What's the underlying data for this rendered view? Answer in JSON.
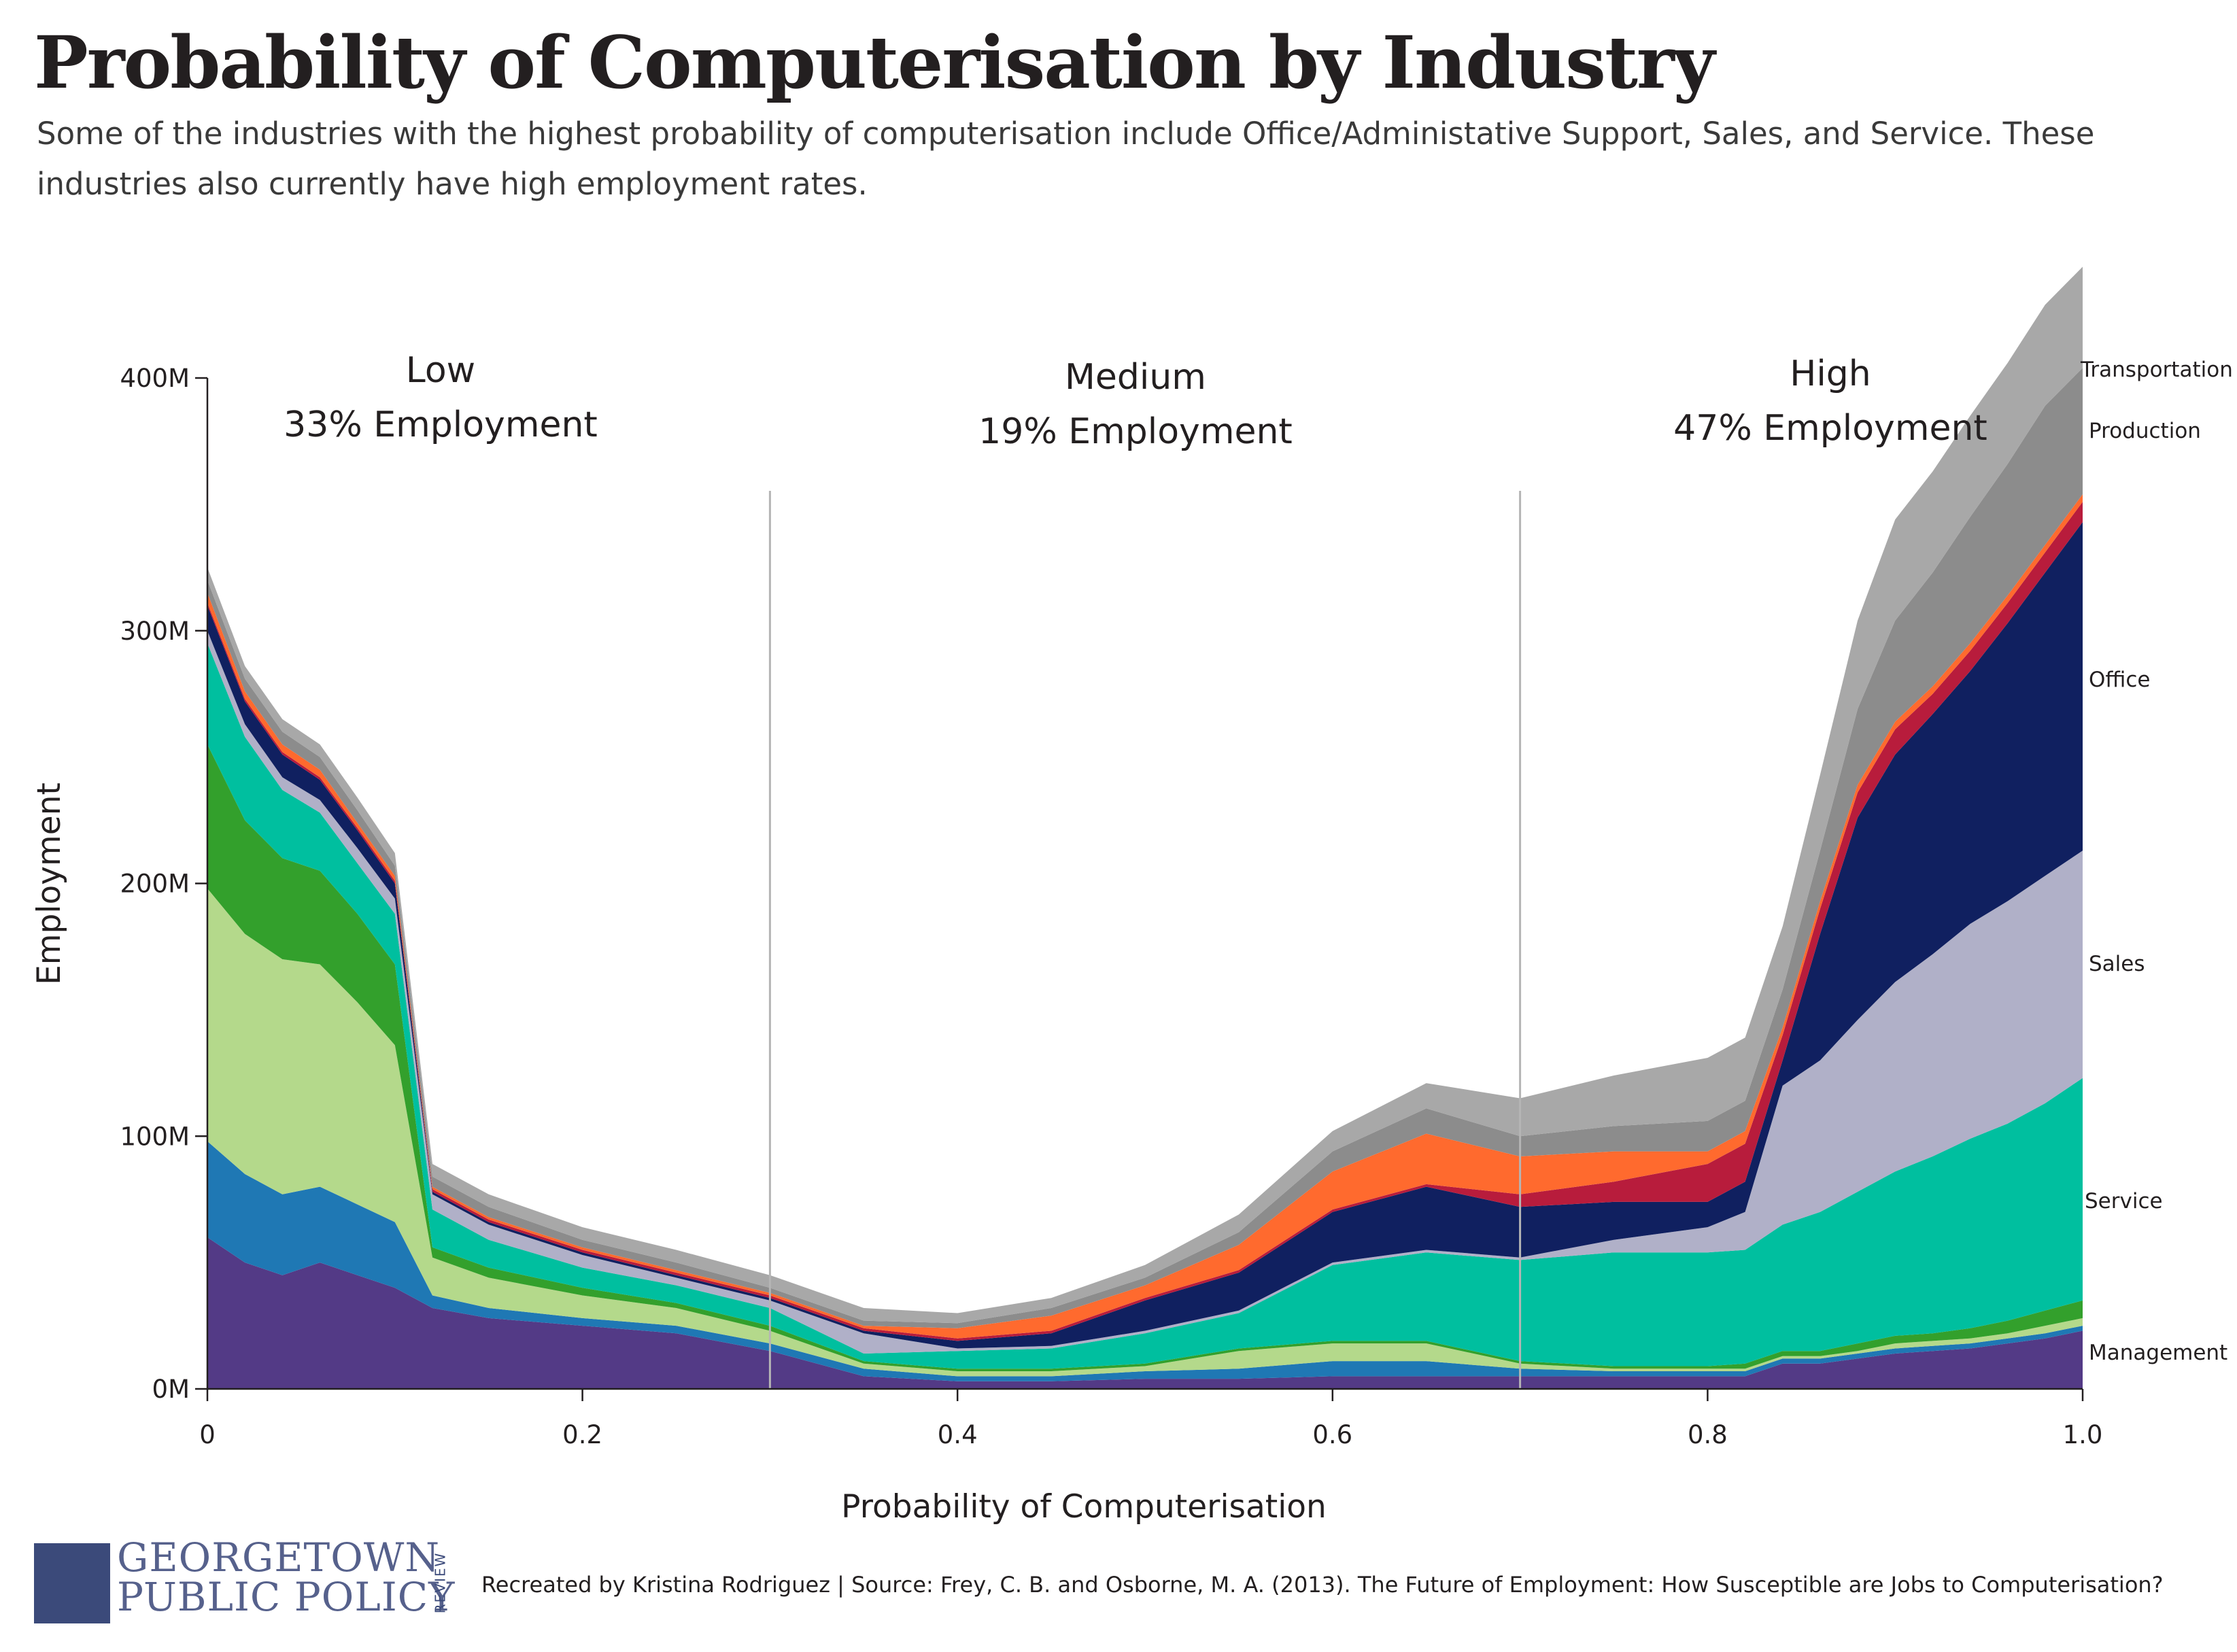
{
  "title": "Probability of Computerisation by Industry",
  "subtitle": "Some of the industries with the highest probability of computerisation include Office/Administative Support, Sales, and Service. These industries also currently have high employment rates.",
  "regions": [
    {
      "name": "Low",
      "employment": "33% Employment"
    },
    {
      "name": "Medium",
      "employment": "19% Employment"
    },
    {
      "name": "High",
      "employment": "47% Employment"
    }
  ],
  "footer": {
    "logo_line1": "GEORGETOWN",
    "logo_line2": "PUBLIC POLICY",
    "logo_tag": "REVIEW",
    "credit": "Recreated by Kristina Rodriguez | Source: Frey, C. B. and Osborne, M. A. (2013). The Future of Employment: How Susceptible are Jobs to Computerisation?"
  },
  "chart_data": {
    "type": "area",
    "stacked": true,
    "xlabel": "Probability of Computerisation",
    "ylabel": "Employment",
    "xlim": [
      0,
      1
    ],
    "ylim": [
      0,
      400
    ],
    "x_ticks": [
      {
        "v": 0,
        "label": "0"
      },
      {
        "v": 0.2,
        "label": "0.2"
      },
      {
        "v": 0.4,
        "label": "0.4"
      },
      {
        "v": 0.6,
        "label": "0.6"
      },
      {
        "v": 0.8,
        "label": "0.8"
      },
      {
        "v": 1.0,
        "label": "1.0"
      }
    ],
    "y_ticks": [
      {
        "v": 0,
        "label": "0M"
      },
      {
        "v": 100,
        "label": "100M"
      },
      {
        "v": 200,
        "label": "200M"
      },
      {
        "v": 300,
        "label": "300M"
      },
      {
        "v": 400,
        "label": "400M"
      }
    ],
    "region_boundaries": [
      0.3,
      0.7
    ],
    "x": [
      0,
      0.02,
      0.04,
      0.06,
      0.08,
      0.1,
      0.12,
      0.15,
      0.2,
      0.25,
      0.3,
      0.35,
      0.4,
      0.45,
      0.5,
      0.55,
      0.6,
      0.65,
      0.7,
      0.75,
      0.8,
      0.82,
      0.84,
      0.86,
      0.88,
      0.9,
      0.92,
      0.94,
      0.96,
      0.98,
      1.0
    ],
    "series": [
      {
        "name": "Management",
        "color": "#533a86",
        "values": [
          60,
          50,
          45,
          50,
          45,
          40,
          32,
          28,
          25,
          22,
          15,
          5,
          3,
          3,
          4,
          4,
          5,
          5,
          5,
          5,
          5,
          5,
          10,
          10,
          12,
          14,
          15,
          16,
          18,
          20,
          23
        ]
      },
      {
        "name": "",
        "color": "#1f78b4",
        "values": [
          38,
          35,
          32,
          30,
          28,
          26,
          5,
          4,
          3,
          3,
          3,
          3,
          2,
          2,
          3,
          4,
          6,
          6,
          3,
          2,
          2,
          2,
          2,
          2,
          2,
          2,
          2,
          2,
          2,
          2,
          2
        ]
      },
      {
        "name": "",
        "color": "#b4d98b",
        "values": [
          100,
          95,
          93,
          88,
          80,
          70,
          15,
          12,
          9,
          7,
          5,
          2,
          2,
          2,
          2,
          7,
          7,
          7,
          2,
          1,
          1,
          1,
          1,
          1,
          1,
          2,
          2,
          2,
          2,
          3,
          3
        ]
      },
      {
        "name": "",
        "color": "#33a02c",
        "values": [
          57,
          45,
          40,
          37,
          35,
          32,
          4,
          4,
          3,
          2,
          2,
          1,
          1,
          1,
          1,
          1,
          1,
          1,
          1,
          1,
          1,
          2,
          2,
          2,
          3,
          3,
          3,
          4,
          5,
          6,
          7
        ]
      },
      {
        "name": "Service",
        "color": "#00bf9f",
        "values": [
          40,
          33,
          27,
          23,
          20,
          20,
          15,
          11,
          8,
          7,
          7,
          3,
          7,
          8,
          12,
          14,
          30,
          35,
          40,
          45,
          45,
          45,
          50,
          55,
          60,
          65,
          70,
          75,
          78,
          82,
          88
        ]
      },
      {
        "name": "Sales",
        "color": "#b0b0c8",
        "values": [
          5,
          5,
          5,
          5,
          6,
          6,
          6,
          6,
          5,
          3,
          3,
          8,
          1,
          1,
          1,
          1,
          1,
          1,
          1,
          5,
          10,
          15,
          55,
          60,
          68,
          75,
          80,
          85,
          88,
          90,
          90
        ]
      },
      {
        "name": "Office",
        "color": "#102060",
        "values": [
          10,
          9,
          9,
          8,
          7,
          6,
          1,
          1,
          1,
          1,
          1,
          1,
          3,
          5,
          12,
          15,
          20,
          25,
          20,
          15,
          10,
          12,
          10,
          50,
          80,
          90,
          95,
          100,
          110,
          120,
          130
        ]
      },
      {
        "name": "",
        "color": "#b81c3c",
        "values": [
          1,
          1,
          1,
          1,
          1,
          1,
          1,
          1,
          1,
          1,
          1,
          1,
          1,
          1,
          1,
          1,
          1,
          1,
          5,
          8,
          15,
          15,
          10,
          10,
          10,
          10,
          8,
          8,
          8,
          8,
          8
        ]
      },
      {
        "name": "",
        "color": "#ff6a2e",
        "values": [
          4,
          3,
          3,
          3,
          2,
          2,
          1,
          1,
          1,
          1,
          1,
          1,
          4,
          6,
          5,
          10,
          15,
          20,
          15,
          12,
          5,
          5,
          3,
          3,
          3,
          3,
          3,
          3,
          3,
          3,
          3
        ]
      },
      {
        "name": "Production",
        "color": "#8c8c8c",
        "values": [
          5,
          5,
          5,
          5,
          5,
          4,
          4,
          4,
          3,
          3,
          2,
          2,
          2,
          3,
          3,
          5,
          8,
          10,
          8,
          10,
          12,
          12,
          15,
          20,
          30,
          40,
          45,
          50,
          52,
          55,
          50
        ]
      },
      {
        "name": "Transportation",
        "color": "#a8a8a8",
        "values": [
          5,
          5,
          5,
          5,
          5,
          5,
          5,
          5,
          5,
          5,
          5,
          5,
          4,
          4,
          5,
          7,
          8,
          10,
          15,
          20,
          25,
          25,
          25,
          30,
          35,
          40,
          40,
          40,
          40,
          40,
          40
        ]
      }
    ]
  }
}
